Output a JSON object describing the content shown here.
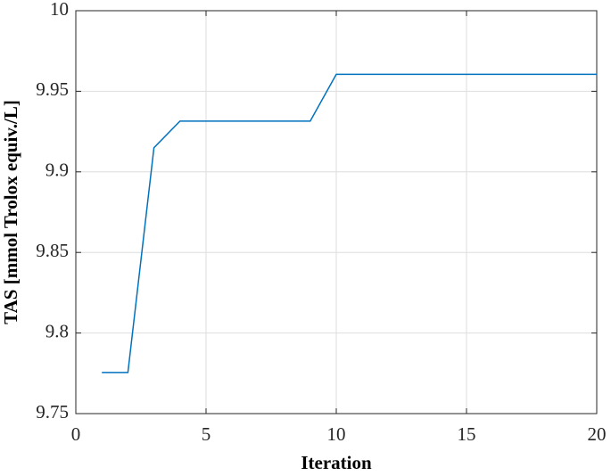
{
  "chart_data": {
    "type": "line",
    "x_label": "Iteration",
    "y_label": "TAS [mmol Trolox equiv./L]",
    "x": [
      1,
      2,
      3,
      4,
      5,
      6,
      7,
      8,
      9,
      10,
      11,
      12,
      13,
      14,
      15,
      16,
      17,
      18,
      19,
      20
    ],
    "values": [
      9.7755,
      9.7755,
      9.915,
      9.9315,
      9.9315,
      9.9315,
      9.9315,
      9.9315,
      9.9315,
      9.9605,
      9.9605,
      9.9605,
      9.9605,
      9.9605,
      9.9605,
      9.9605,
      9.9605,
      9.9605,
      9.9605,
      9.9605
    ],
    "color": "#0072bd",
    "xlim": [
      0,
      20
    ],
    "xticks": [
      0,
      5,
      10,
      15,
      20
    ],
    "ylim": [
      9.75,
      10
    ],
    "yticks": [
      9.75,
      9.8,
      9.85,
      9.9,
      9.95,
      10
    ],
    "grid": true
  }
}
